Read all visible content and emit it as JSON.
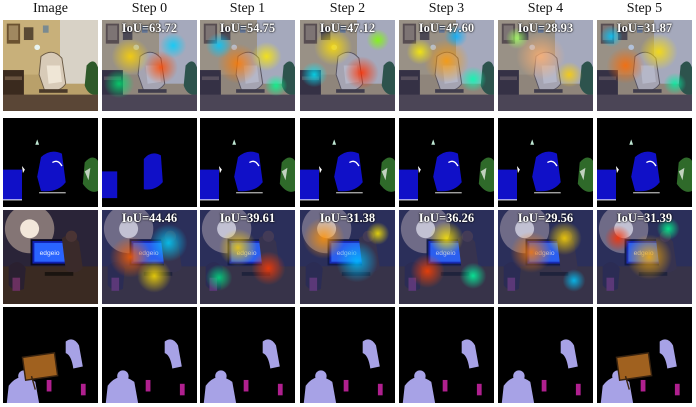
{
  "columns": [
    "Image",
    "Step 0",
    "Step 1",
    "Step 2",
    "Step 3",
    "Step 4",
    "Step 5"
  ],
  "rows": [
    {
      "kind": "image",
      "scene": "living-room",
      "iou": [
        "IoU=63.72",
        "IoU=54.75",
        "IoU=47.12",
        "IoU=47.60",
        "IoU=28.93",
        "IoU=31.87"
      ]
    },
    {
      "kind": "mask",
      "scene": "living-room",
      "colors": {
        "object": "#1010c8",
        "plant": "#2f6a2a",
        "lamp": "#bfe8d4",
        "edge": "#ffffff"
      }
    },
    {
      "kind": "image",
      "scene": "monitor-room",
      "iou": [
        "IoU=44.46",
        "IoU=39.61",
        "IoU=31.38",
        "IoU=36.26",
        "IoU=29.56",
        "IoU=31.39"
      ]
    },
    {
      "kind": "mask",
      "scene": "monitor-room",
      "colors": {
        "person": "#a7a2e6",
        "bottle": "#b0208f",
        "frame": "#a0611f"
      }
    }
  ]
}
